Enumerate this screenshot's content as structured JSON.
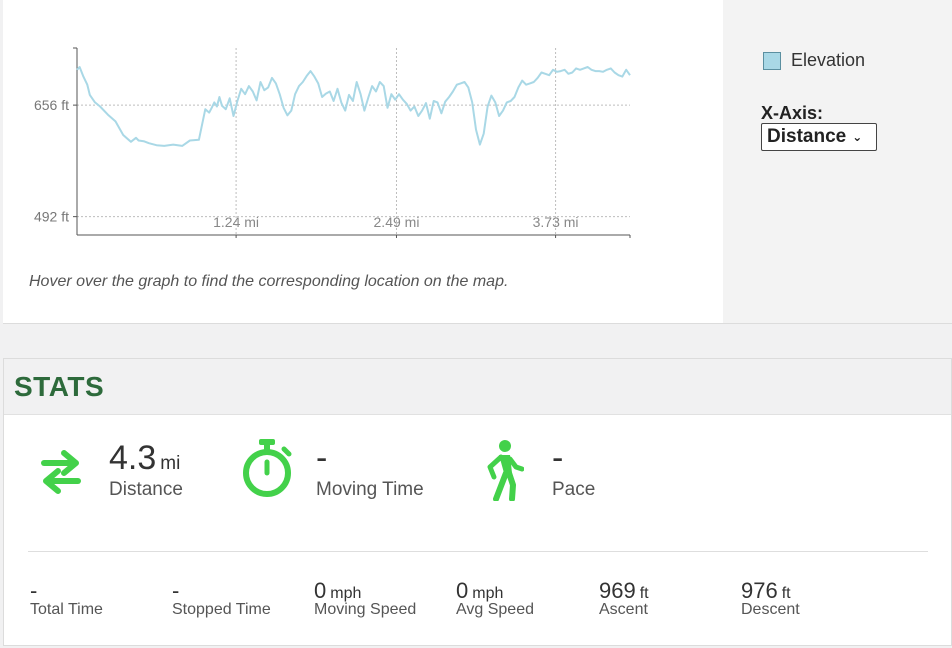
{
  "chart_data": {
    "type": "line",
    "series": [
      {
        "name": "Elevation",
        "x": [
          0.0,
          0.02,
          0.05,
          0.08,
          0.1,
          0.14,
          0.18,
          0.24,
          0.3,
          0.36,
          0.42,
          0.46,
          0.48,
          0.52,
          0.56,
          0.62,
          0.68,
          0.75,
          0.82,
          0.88,
          0.95,
          1.0,
          1.03,
          1.05,
          1.07,
          1.09,
          1.11,
          1.13,
          1.16,
          1.19,
          1.22,
          1.25,
          1.28,
          1.31,
          1.34,
          1.37,
          1.4,
          1.43,
          1.46,
          1.49,
          1.52,
          1.55,
          1.58,
          1.61,
          1.64,
          1.67,
          1.7,
          1.73,
          1.76,
          1.79,
          1.82,
          1.85,
          1.88,
          1.91,
          1.94,
          1.97,
          2.0,
          2.03,
          2.06,
          2.09,
          2.12,
          2.15,
          2.18,
          2.21,
          2.24,
          2.27,
          2.3,
          2.33,
          2.36,
          2.39,
          2.42,
          2.45,
          2.48,
          2.51,
          2.54,
          2.57,
          2.6,
          2.63,
          2.66,
          2.69,
          2.72,
          2.75,
          2.78,
          2.81,
          2.84,
          2.87,
          2.9,
          2.93,
          2.96,
          2.99,
          3.02,
          3.05,
          3.08,
          3.11,
          3.14,
          3.17,
          3.2,
          3.23,
          3.26,
          3.29,
          3.32,
          3.35,
          3.38,
          3.41,
          3.44,
          3.47,
          3.5,
          3.53,
          3.56,
          3.59,
          3.62,
          3.65,
          3.68,
          3.71,
          3.74,
          3.77,
          3.8,
          3.83,
          3.86,
          3.89,
          3.92,
          3.95,
          3.98,
          4.01,
          4.04,
          4.07,
          4.1,
          4.13,
          4.16,
          4.19,
          4.22,
          4.25,
          4.28,
          4.31
        ],
        "values": [
          708,
          712,
          698,
          686,
          671,
          660,
          654,
          642,
          632,
          612,
          602,
          608,
          604,
          603,
          600,
          597,
          596,
          598,
          596,
          604,
          605,
          650,
          645,
          652,
          660,
          654,
          668,
          655,
          650,
          666,
          640,
          662,
          680,
          672,
          684,
          676,
          663,
          690,
          678,
          682,
          696,
          688,
          672,
          652,
          641,
          648,
          672,
          684,
          690,
          699,
          706,
          698,
          688,
          668,
          673,
          676,
          662,
          680,
          660,
          648,
          671,
          662,
          690,
          672,
          648,
          667,
          684,
          676,
          690,
          684,
          652,
          672,
          664,
          672,
          664,
          658,
          648,
          654,
          640,
          648,
          659,
          636,
          662,
          660,
          644,
          661,
          668,
          676,
          686,
          688,
          690,
          682,
          660,
          620,
          598,
          614,
          654,
          670,
          660,
          640,
          648,
          660,
          662,
          668,
          682,
          692,
          686,
          688,
          690,
          696,
          704,
          702,
          700,
          708,
          705,
          706,
          708,
          702,
          704,
          710,
          708,
          710,
          712,
          708,
          706,
          706,
          705,
          708,
          710,
          704,
          700,
          698,
          708,
          700
        ],
        "color": "#a9d8e6"
      }
    ],
    "y_ticks": [
      {
        "value": 656,
        "label": "656 ft"
      },
      {
        "value": 492,
        "label": "492 ft"
      }
    ],
    "x_ticks": [
      {
        "value": 1.24,
        "label": "1.24 mi"
      },
      {
        "value": 2.49,
        "label": "2.49 mi"
      },
      {
        "value": 3.73,
        "label": "3.73 mi"
      }
    ],
    "xlim": [
      0,
      4.31
    ],
    "ylim": [
      465,
      740
    ],
    "grid": true,
    "legend": "right"
  },
  "chart_panel": {
    "hint": "Hover over the graph to find the corresponding location on the map.",
    "legend_label": "Elevation",
    "legend_color": "#a9d8e6",
    "xaxis_label": "X-Axis:",
    "xaxis_selected": "Distance"
  },
  "stats": {
    "title": "STATS",
    "icon_color": "#43d14a",
    "title_color": "#2d6a3b",
    "distance": {
      "value": "4.3",
      "unit": "mi",
      "label": "Distance",
      "icon": "swap-arrows-icon"
    },
    "moving_time": {
      "value": "-",
      "label": "Moving Time",
      "icon": "stopwatch-icon"
    },
    "pace": {
      "value": "-",
      "label": "Pace",
      "icon": "walking-person-icon"
    },
    "small": [
      {
        "name": "total-time",
        "value": "-",
        "unit": "",
        "label": "Total Time"
      },
      {
        "name": "stopped-time",
        "value": "-",
        "unit": "",
        "label": "Stopped Time"
      },
      {
        "name": "moving-speed",
        "value": "0",
        "unit": "mph",
        "label": "Moving Speed"
      },
      {
        "name": "avg-speed",
        "value": "0",
        "unit": "mph",
        "label": "Avg Speed"
      },
      {
        "name": "ascent",
        "value": "969",
        "unit": "ft",
        "label": "Ascent"
      },
      {
        "name": "descent",
        "value": "976",
        "unit": "ft",
        "label": "Descent"
      }
    ]
  }
}
